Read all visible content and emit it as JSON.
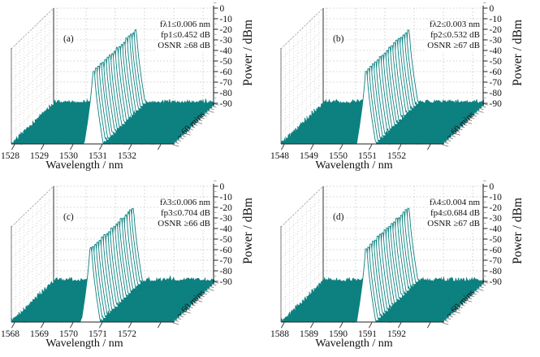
{
  "figure": {
    "background": "#ffffff",
    "trace_color": "#0d8180",
    "grid_color": "#c2c2c2",
    "wall_grid_color": "#cccccc",
    "axis_color": "#222222",
    "text_color": "#111111"
  },
  "chart_data": [
    {
      "type": "line",
      "subtype": "3d-waterfall-optical-spectrum",
      "panel": "(a)",
      "xlabel": "Wavelength / nm",
      "ylabel": "Power / dBm",
      "time_axis_label": "~ 60 mins",
      "x_ticks": [
        1528,
        1529,
        1530,
        1531,
        1532
      ],
      "y_ticks": [
        0,
        -10,
        -20,
        -30,
        -40,
        -50,
        -60,
        -70,
        -80,
        -90
      ],
      "ylim": [
        -90,
        0
      ],
      "peak_wavelength_nm": 1530.7,
      "peak_power_dbm": -20.5,
      "noise_floor_dbm": -90,
      "num_traces": 19,
      "duration_mins": 60,
      "annotations": [
        "fλ1≤0.006 nm",
        "fp1≤0.452 dB",
        "OSNR ≥68 dB"
      ],
      "seed": 101
    },
    {
      "type": "line",
      "subtype": "3d-waterfall-optical-spectrum",
      "panel": "(b)",
      "xlabel": "Wavelength / nm",
      "ylabel": "Power / dBm",
      "time_axis_label": "~ 60 mins",
      "x_ticks": [
        1548,
        1549,
        1550,
        1551,
        1552
      ],
      "y_ticks": [
        0,
        -10,
        -20,
        -30,
        -40,
        -50,
        -60,
        -70,
        -80,
        -90
      ],
      "ylim": [
        -90,
        0
      ],
      "peak_wavelength_nm": 1550.8,
      "peak_power_dbm": -20.5,
      "noise_floor_dbm": -90,
      "num_traces": 19,
      "duration_mins": 60,
      "annotations": [
        "fλ2≤0.003 nm",
        "fp2≤0.532 dB",
        "OSNR ≥67 dB"
      ],
      "seed": 202
    },
    {
      "type": "line",
      "subtype": "3d-waterfall-optical-spectrum",
      "panel": "(c)",
      "xlabel": "Wavelength / nm",
      "ylabel": "Power / dBm",
      "time_axis_label": "~ 60 mins",
      "x_ticks": [
        1568,
        1569,
        1570,
        1571,
        1572
      ],
      "y_ticks": [
        0,
        -10,
        -20,
        -30,
        -40,
        -50,
        -60,
        -70,
        -80,
        -90
      ],
      "ylim": [
        -90,
        0
      ],
      "peak_wavelength_nm": 1570.6,
      "peak_power_dbm": -20.5,
      "noise_floor_dbm": -90,
      "num_traces": 19,
      "duration_mins": 60,
      "annotations": [
        "fλ3≤0.006 nm",
        "fp3≤0.704 dB",
        "OSNR ≥66 dB"
      ],
      "seed": 303
    },
    {
      "type": "line",
      "subtype": "3d-waterfall-optical-spectrum",
      "panel": "(d)",
      "xlabel": "Wavelength / nm",
      "ylabel": "Power / dBm",
      "time_axis_label": "~ 60 mins",
      "x_ticks": [
        1588,
        1589,
        1590,
        1591,
        1592
      ],
      "y_ticks": [
        0,
        -10,
        -20,
        -30,
        -40,
        -50,
        -60,
        -70,
        -80,
        -90
      ],
      "ylim": [
        -90,
        0
      ],
      "peak_wavelength_nm": 1590.8,
      "peak_power_dbm": -20.5,
      "noise_floor_dbm": -90,
      "num_traces": 19,
      "duration_mins": 60,
      "annotations": [
        "fλ4≤0.004 nm",
        "fp4≤0.684 dB",
        "OSNR ≥67 dB"
      ],
      "seed": 404
    }
  ]
}
